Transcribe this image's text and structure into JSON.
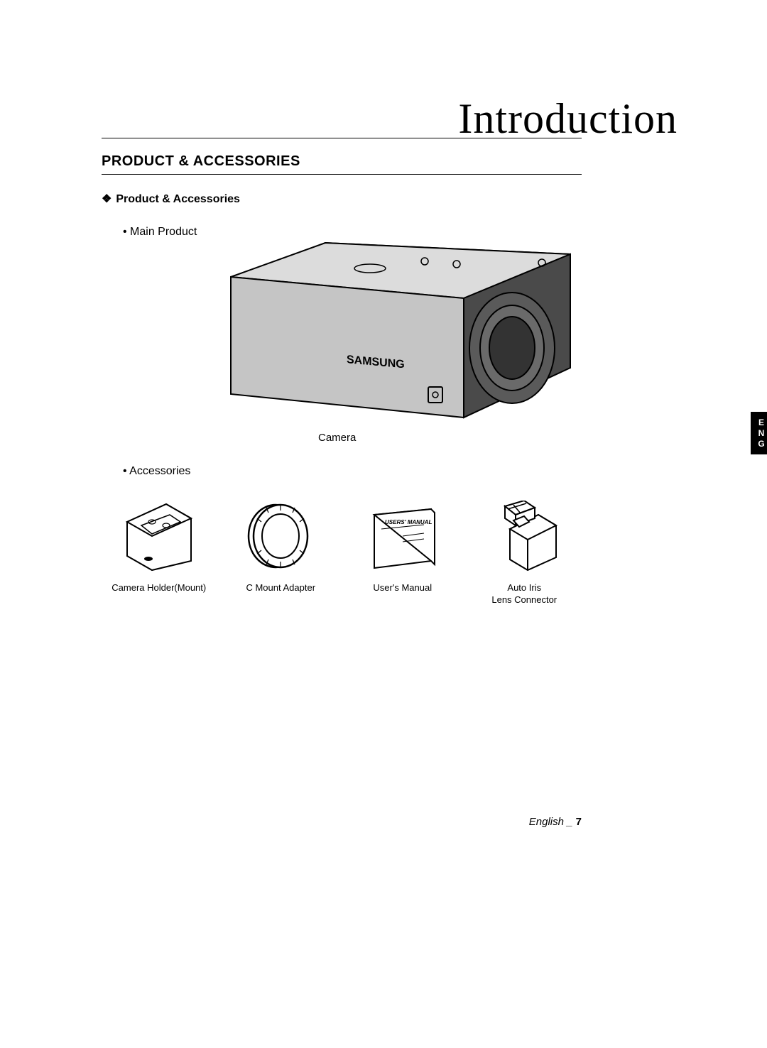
{
  "chapter_title": "Introduction",
  "section_heading": "PRODUCT & ACCESSORIES",
  "sub_heading": "Product & Accessories",
  "main_product_label": "• Main Product",
  "camera_caption": "Camera",
  "camera_brand": "SAMSUNG",
  "accessories_label": "• Accessories",
  "accessories": [
    {
      "caption": "Camera Holder(Mount)"
    },
    {
      "caption": "C Mount Adapter"
    },
    {
      "caption": "User's Manual",
      "booklet_title": "USERS' MANUAL"
    },
    {
      "caption": "Auto Iris\nLens Connector"
    }
  ],
  "lang_tab": "ENG",
  "footer_lang": "English",
  "footer_sep": "_",
  "page_number": "7",
  "colors": {
    "text": "#000000",
    "background": "#ffffff",
    "stroke": "#000000",
    "camera_body": "#cdcdcd",
    "camera_dark": "#4a4a4a",
    "tab_bg": "#000000",
    "tab_text": "#ffffff"
  }
}
